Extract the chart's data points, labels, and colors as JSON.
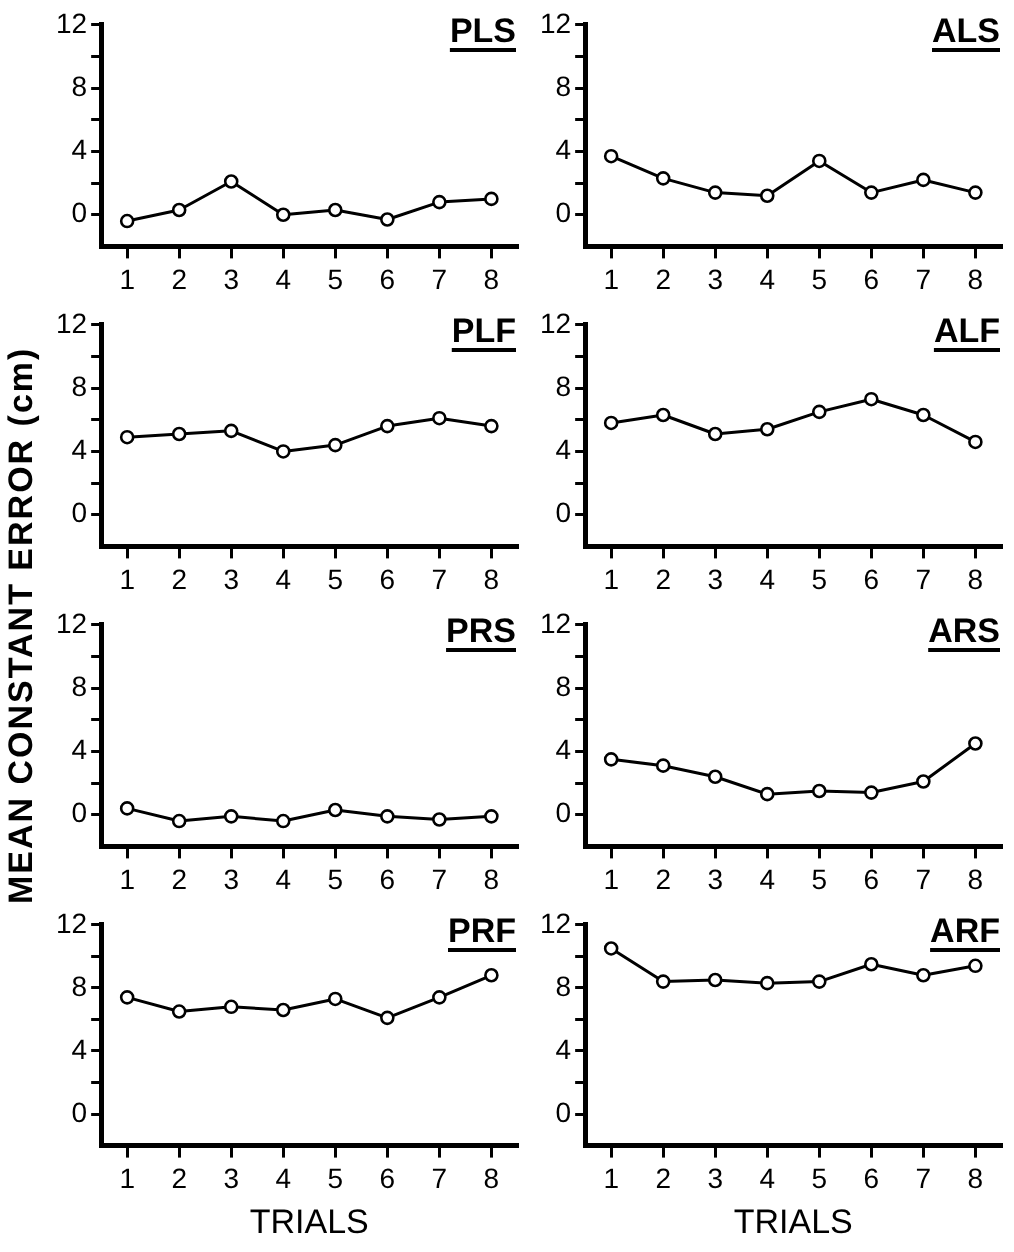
{
  "chart_data": [
    {
      "type": "line",
      "title": "PLS",
      "categories": [
        "1",
        "2",
        "3",
        "4",
        "5",
        "6",
        "7",
        "8"
      ],
      "series": [
        {
          "color": "#000000",
          "values": [
            -0.4,
            0.3,
            2.1,
            0,
            0.3,
            -0.3,
            0.8,
            1.0
          ]
        }
      ],
      "ylim": [
        -2,
        12
      ],
      "yticks": [
        {
          "value": 0,
          "label": "0"
        },
        {
          "value": 2,
          "label": null
        },
        {
          "value": 4,
          "label": "4"
        },
        {
          "value": 6,
          "label": null
        },
        {
          "value": 8,
          "label": "8"
        },
        {
          "value": 10,
          "label": null
        },
        {
          "value": 12,
          "label": "12"
        }
      ],
      "marker": "circle",
      "line_style": "solid"
    },
    {
      "type": "line",
      "title": "ALS",
      "categories": [
        "1",
        "2",
        "3",
        "4",
        "5",
        "6",
        "7",
        "8"
      ],
      "series": [
        {
          "color": "#000000",
          "values": [
            3.7,
            2.3,
            1.4,
            1.2,
            3.4,
            1.4,
            2.2,
            1.4
          ]
        }
      ],
      "ylim": [
        -2,
        12
      ],
      "yticks": [
        {
          "value": 0,
          "label": "0"
        },
        {
          "value": 2,
          "label": null
        },
        {
          "value": 4,
          "label": "4"
        },
        {
          "value": 6,
          "label": null
        },
        {
          "value": 8,
          "label": "8"
        },
        {
          "value": 10,
          "label": null
        },
        {
          "value": 12,
          "label": "12"
        }
      ],
      "marker": "circle",
      "line_style": "solid"
    },
    {
      "type": "line",
      "title": "PLF",
      "categories": [
        "1",
        "2",
        "3",
        "4",
        "5",
        "6",
        "7",
        "8"
      ],
      "series": [
        {
          "color": "#000000",
          "values": [
            4.9,
            5.1,
            5.3,
            4.0,
            4.4,
            5.6,
            6.1,
            5.6
          ]
        }
      ],
      "ylim": [
        -2,
        12
      ],
      "yticks": [
        {
          "value": 0,
          "label": "0"
        },
        {
          "value": 2,
          "label": null
        },
        {
          "value": 4,
          "label": "4"
        },
        {
          "value": 6,
          "label": null
        },
        {
          "value": 8,
          "label": "8"
        },
        {
          "value": 10,
          "label": null
        },
        {
          "value": 12,
          "label": "12"
        }
      ],
      "marker": "circle",
      "line_style": "solid"
    },
    {
      "type": "line",
      "title": "ALF",
      "categories": [
        "1",
        "2",
        "3",
        "4",
        "5",
        "6",
        "7",
        "8"
      ],
      "series": [
        {
          "color": "#000000",
          "values": [
            5.8,
            6.3,
            5.1,
            5.4,
            6.5,
            7.3,
            6.3,
            4.6
          ]
        }
      ],
      "ylim": [
        -2,
        12
      ],
      "yticks": [
        {
          "value": 0,
          "label": "0"
        },
        {
          "value": 2,
          "label": null
        },
        {
          "value": 4,
          "label": "4"
        },
        {
          "value": 6,
          "label": null
        },
        {
          "value": 8,
          "label": "8"
        },
        {
          "value": 10,
          "label": null
        },
        {
          "value": 12,
          "label": "12"
        }
      ],
      "marker": "circle",
      "line_style": "solid"
    },
    {
      "type": "line",
      "title": "PRS",
      "ylabel": "MEAN CONSTANT ERROR (cm)",
      "categories": [
        "1",
        "2",
        "3",
        "4",
        "5",
        "6",
        "7",
        "8"
      ],
      "series": [
        {
          "color": "#000000",
          "values": [
            0.4,
            -0.4,
            -0.1,
            -0.4,
            0.3,
            -0.1,
            -0.3,
            -0.1
          ]
        }
      ],
      "ylim": [
        -2,
        12
      ],
      "yticks": [
        {
          "value": 0,
          "label": "0"
        },
        {
          "value": 2,
          "label": null
        },
        {
          "value": 4,
          "label": "4"
        },
        {
          "value": 6,
          "label": null
        },
        {
          "value": 8,
          "label": "8"
        },
        {
          "value": 10,
          "label": null
        },
        {
          "value": 12,
          "label": "12"
        }
      ],
      "marker": "circle",
      "line_style": "solid"
    },
    {
      "type": "line",
      "title": "ARS",
      "categories": [
        "1",
        "2",
        "3",
        "4",
        "5",
        "6",
        "7",
        "8"
      ],
      "series": [
        {
          "color": "#000000",
          "values": [
            3.5,
            3.1,
            2.4,
            1.3,
            1.5,
            1.4,
            2.1,
            4.5
          ]
        }
      ],
      "ylim": [
        -2,
        12
      ],
      "yticks": [
        {
          "value": 0,
          "label": "0"
        },
        {
          "value": 2,
          "label": null
        },
        {
          "value": 4,
          "label": "4"
        },
        {
          "value": 6,
          "label": null
        },
        {
          "value": 8,
          "label": "8"
        },
        {
          "value": 10,
          "label": null
        },
        {
          "value": 12,
          "label": "12"
        }
      ],
      "marker": "circle",
      "line_style": "solid"
    },
    {
      "type": "line",
      "title": "PRF",
      "xlabel": "TRIALS",
      "categories": [
        "1",
        "2",
        "3",
        "4",
        "5",
        "6",
        "7",
        "8"
      ],
      "series": [
        {
          "color": "#000000",
          "values": [
            7.4,
            6.5,
            6.8,
            6.6,
            7.3,
            6.1,
            7.4,
            8.8
          ]
        }
      ],
      "ylim": [
        -2,
        12
      ],
      "yticks": [
        {
          "value": 0,
          "label": "0"
        },
        {
          "value": 2,
          "label": null
        },
        {
          "value": 4,
          "label": "4"
        },
        {
          "value": 6,
          "label": null
        },
        {
          "value": 8,
          "label": "8"
        },
        {
          "value": 10,
          "label": null
        },
        {
          "value": 12,
          "label": "12"
        }
      ],
      "marker": "circle",
      "line_style": "solid"
    },
    {
      "type": "line",
      "title": "ARF",
      "xlabel": "TRIALS",
      "categories": [
        "1",
        "2",
        "3",
        "4",
        "5",
        "6",
        "7",
        "8"
      ],
      "series": [
        {
          "color": "#000000",
          "values": [
            10.5,
            8.4,
            8.5,
            8.3,
            8.4,
            9.5,
            8.8,
            9.4
          ]
        }
      ],
      "ylim": [
        -2,
        12
      ],
      "yticks": [
        {
          "value": 0,
          "label": "0"
        },
        {
          "value": 2,
          "label": null
        },
        {
          "value": 4,
          "label": "4"
        },
        {
          "value": 6,
          "label": null
        },
        {
          "value": 8,
          "label": "8"
        },
        {
          "value": 10,
          "label": null
        },
        {
          "value": 12,
          "label": "12"
        }
      ],
      "marker": "circle",
      "line_style": "solid"
    }
  ]
}
